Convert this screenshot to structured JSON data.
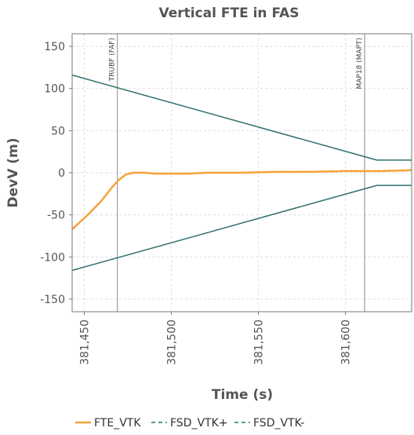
{
  "chart_data": {
    "type": "line",
    "title": "Vertical FTE in FAS",
    "xlabel": "Time (s)",
    "ylabel": "DevV (m)",
    "xlim": [
      381443,
      381638
    ],
    "ylim": [
      -165,
      165
    ],
    "x_ticks": [
      {
        "value": 381450,
        "label": "381,450"
      },
      {
        "value": 381500,
        "label": "381,500"
      },
      {
        "value": 381550,
        "label": "381,550"
      },
      {
        "value": 381600,
        "label": "381,600"
      }
    ],
    "y_ticks": [
      {
        "value": 150,
        "label": "150"
      },
      {
        "value": 100,
        "label": "100"
      },
      {
        "value": 50,
        "label": "50"
      },
      {
        "value": 0,
        "label": "0"
      },
      {
        "value": -50,
        "label": "-50"
      },
      {
        "value": -100,
        "label": "-100"
      },
      {
        "value": -150,
        "label": "-150"
      }
    ],
    "grid": true,
    "legend_position": "bottom",
    "series": [
      {
        "name": "FTE_VTK",
        "color": "#f7a23c",
        "style": "solid",
        "points": [
          [
            381443,
            -67
          ],
          [
            381452,
            -50
          ],
          [
            381460,
            -33
          ],
          [
            381466,
            -17
          ],
          [
            381470,
            -8
          ],
          [
            381474,
            -2
          ],
          [
            381478,
            0
          ],
          [
            381485,
            0
          ],
          [
            381490,
            -1
          ],
          [
            381500,
            -1
          ],
          [
            381510,
            -1
          ],
          [
            381520,
            0
          ],
          [
            381540,
            0
          ],
          [
            381560,
            1
          ],
          [
            381580,
            1
          ],
          [
            381600,
            2
          ],
          [
            381620,
            2
          ],
          [
            381638,
            3
          ]
        ]
      },
      {
        "name": "FSD_VTK+",
        "color": "#2f6e6e",
        "style": "dashed",
        "points": [
          [
            381443,
            116
          ],
          [
            381618,
            15
          ],
          [
            381638,
            15
          ]
        ]
      },
      {
        "name": "FSD_VTK-",
        "color": "#2f6e6e",
        "style": "dashed",
        "points": [
          [
            381443,
            -116
          ],
          [
            381618,
            -15
          ],
          [
            381638,
            -15
          ]
        ]
      }
    ],
    "annotations": [
      {
        "x": 381469,
        "label": "TRUBF (FAF)"
      },
      {
        "x": 381611,
        "label": "MAP18 (MAPT)"
      }
    ]
  }
}
